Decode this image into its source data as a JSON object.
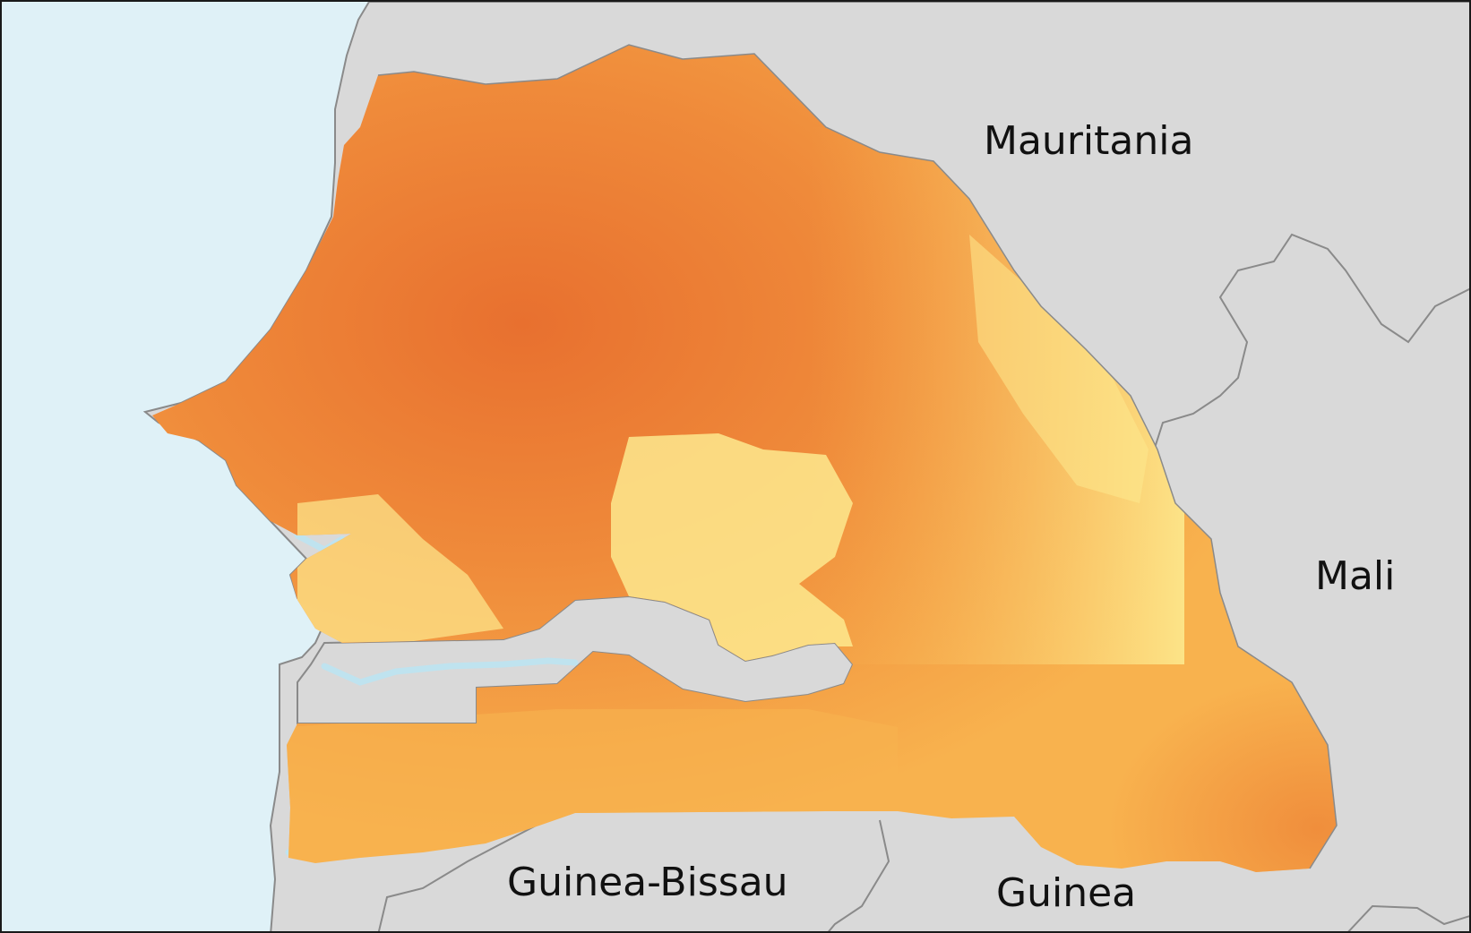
{
  "map": {
    "colors": {
      "ocean": "#dff1f7",
      "land": "#d9d9d9",
      "border": "#8a8a8a",
      "water": "#bfe3ef",
      "heat_light": "#fde98e",
      "heat_mid": "#f8b24e",
      "heat_dark": "#ef8a3a",
      "heat_darkest": "#e8702f"
    },
    "labels": {
      "mauritania": "Mauritania",
      "mali": "Mali",
      "guinea_bissau": "Guinea-Bissau",
      "guinea": "Guinea"
    }
  }
}
